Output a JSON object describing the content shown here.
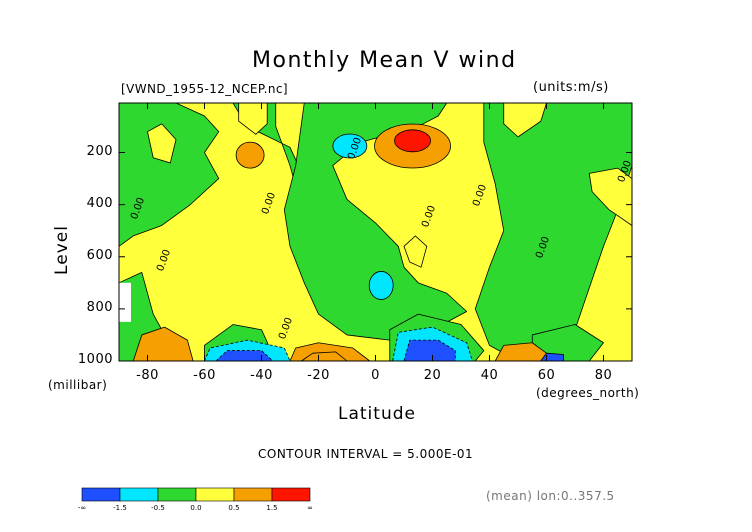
{
  "chart_data": {
    "type": "heatmap",
    "title": "Monthly Mean V wind",
    "file_label": "[VWND_1955-12_NCEP.nc]",
    "units_label": "(units:m/s)",
    "xlabel": "Latitude",
    "x_unit": "(degrees_north)",
    "ylabel": "Level",
    "y_unit": "(millibar)",
    "xlim": [
      -90,
      90
    ],
    "ylim": [
      1000,
      10
    ],
    "xticks": [
      "-80",
      "-60",
      "-40",
      "-20",
      "0",
      "20",
      "40",
      "60",
      "80"
    ],
    "xtick_values": [
      -80,
      -60,
      -40,
      -20,
      0,
      20,
      40,
      60,
      80
    ],
    "yticks": [
      "200",
      "400",
      "600",
      "800",
      "1000"
    ],
    "ytick_values": [
      200,
      400,
      600,
      800,
      1000
    ],
    "contour_interval_label": "CONTOUR INTERVAL = 5.000E-01",
    "average_label": "(mean) lon:0..357.5",
    "contour_labels": [
      "0.00",
      "0.00",
      "0.00",
      "0.00",
      "0.00",
      "0.00",
      "0.00",
      "0.00",
      "0.00"
    ],
    "colorbar": {
      "colors": [
        "#1e50ff",
        "#00e6ff",
        "#2ed82e",
        "#ffff3c",
        "#f5a000",
        "#ff1400"
      ],
      "labels": [
        "-∞",
        "-1.5",
        "-0.5",
        "0.0",
        "0.5",
        "1.5",
        "∞"
      ]
    },
    "regions": [
      {
        "level": 0,
        "note": "background positive 0..0.5 (yellow)"
      },
      {
        "level": -1,
        "note": "negative 0..-0.5 (green)"
      },
      {
        "level": -2,
        "note": "-0.5..-1.5 (cyan)"
      },
      {
        "level": -3,
        "note": "< -1.5 (blue)"
      },
      {
        "level": 1,
        "note": "0.5..1.5 (orange)"
      },
      {
        "level": 2,
        "note": "> 1.5 (red)"
      }
    ]
  }
}
